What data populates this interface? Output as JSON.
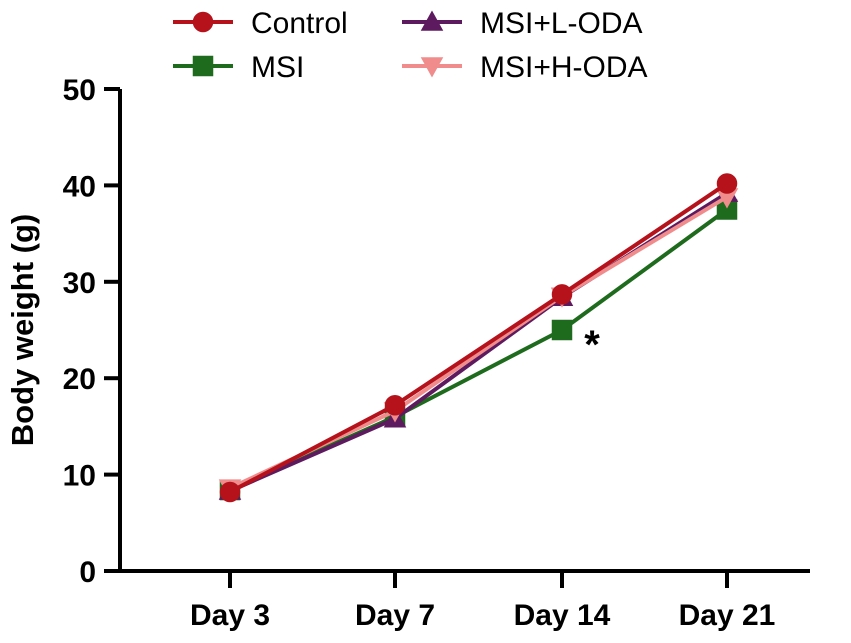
{
  "chart_data": {
    "type": "line",
    "title": "",
    "xlabel": "",
    "ylabel": "Body weight (g)",
    "categories": [
      "Day 3",
      "Day 7",
      "Day 14",
      "Day 21"
    ],
    "ylim": [
      0,
      50
    ],
    "yticks": [
      0,
      10,
      20,
      30,
      40,
      50
    ],
    "grid": false,
    "legend_position": "top",
    "series": [
      {
        "name": "Control",
        "marker": "circle",
        "color": "#B5121B",
        "values": [
          8.2,
          17.2,
          28.7,
          40.2
        ]
      },
      {
        "name": "MSI",
        "marker": "square",
        "color": "#1E6B1E",
        "values": [
          8.4,
          16.0,
          25.0,
          37.5
        ]
      },
      {
        "name": "MSI+L-ODA",
        "marker": "triangle-up",
        "color": "#5E1A5E",
        "values": [
          8.3,
          15.8,
          28.4,
          39.2
        ]
      },
      {
        "name": "MSI+H-ODA",
        "marker": "triangle-down",
        "color": "#F08C8C",
        "values": [
          8.6,
          16.6,
          28.5,
          38.8
        ]
      }
    ],
    "annotations": [
      {
        "text": "*",
        "category": "Day 14",
        "series": "MSI"
      }
    ]
  }
}
